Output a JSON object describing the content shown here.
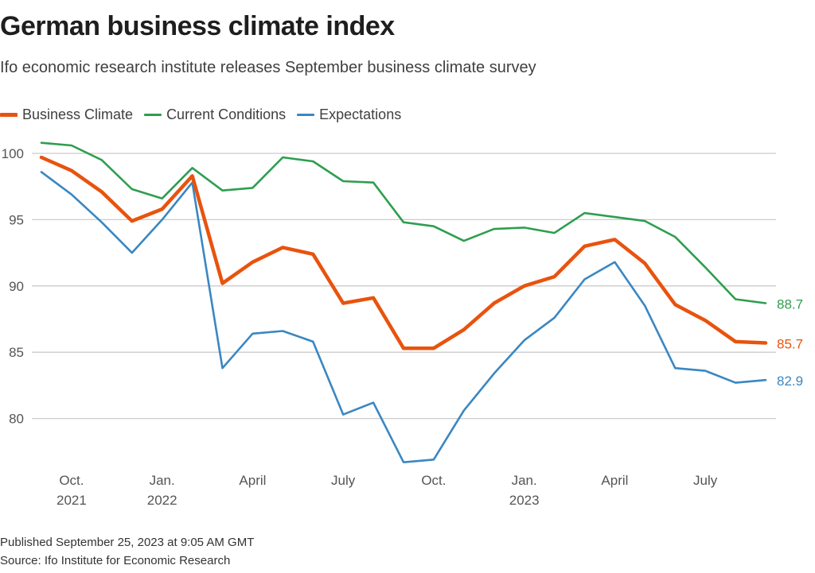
{
  "header": {
    "title": "German business climate index",
    "subtitle": "Ifo economic research institute releases September business climate survey"
  },
  "footer": {
    "published": "Published September 25, 2023 at 9:05 AM GMT",
    "source": "Source: Ifo Institute for Economic Research"
  },
  "chart_data": {
    "type": "line",
    "title": "German business climate index",
    "subtitle": "Ifo economic research institute releases September business climate survey",
    "xlabel": "",
    "ylabel": "",
    "x": [
      "2021-09",
      "2021-10",
      "2021-11",
      "2021-12",
      "2022-01",
      "2022-02",
      "2022-03",
      "2022-04",
      "2022-05",
      "2022-06",
      "2022-07",
      "2022-08",
      "2022-09",
      "2022-10",
      "2022-11",
      "2022-12",
      "2023-01",
      "2023-02",
      "2023-03",
      "2023-04",
      "2023-05",
      "2023-06",
      "2023-07",
      "2023-08",
      "2023-09"
    ],
    "x_ticks": [
      {
        "index": 1,
        "line1": "Oct.",
        "line2": "2021"
      },
      {
        "index": 4,
        "line1": "Jan.",
        "line2": "2022"
      },
      {
        "index": 7,
        "line1": "April",
        "line2": ""
      },
      {
        "index": 10,
        "line1": "July",
        "line2": ""
      },
      {
        "index": 13,
        "line1": "Oct.",
        "line2": ""
      },
      {
        "index": 16,
        "line1": "Jan.",
        "line2": "2023"
      },
      {
        "index": 19,
        "line1": "April",
        "line2": ""
      },
      {
        "index": 22,
        "line1": "July",
        "line2": ""
      }
    ],
    "y_ticks": [
      80,
      85,
      90,
      95,
      100
    ],
    "ylim": [
      75.5,
      101.5
    ],
    "grid": true,
    "legend_position": "top-left",
    "series": [
      {
        "name": "Business Climate",
        "color": "#e8530e",
        "end_label": "85.7",
        "values": [
          99.7,
          98.7,
          97.1,
          94.9,
          95.8,
          98.3,
          90.2,
          91.8,
          92.9,
          92.4,
          88.7,
          89.1,
          85.3,
          85.3,
          86.7,
          88.7,
          90.0,
          90.7,
          93.0,
          93.5,
          91.7,
          88.6,
          87.4,
          85.8,
          85.7
        ]
      },
      {
        "name": "Current Conditions",
        "color": "#2e9e4f",
        "end_label": "88.7",
        "values": [
          100.8,
          100.6,
          99.5,
          97.3,
          96.6,
          98.9,
          97.2,
          97.4,
          99.7,
          99.4,
          97.9,
          97.8,
          94.8,
          94.5,
          93.4,
          94.3,
          94.4,
          94.0,
          95.5,
          95.2,
          94.9,
          93.7,
          91.4,
          89.0,
          88.7
        ]
      },
      {
        "name": "Expectations",
        "color": "#3a87c2",
        "end_label": "82.9",
        "values": [
          98.6,
          96.9,
          94.8,
          92.5,
          95.0,
          97.8,
          83.8,
          86.4,
          86.6,
          85.8,
          80.3,
          81.2,
          76.7,
          76.9,
          80.6,
          83.4,
          85.9,
          87.6,
          90.5,
          91.8,
          88.5,
          83.8,
          83.6,
          82.7,
          82.9
        ]
      }
    ]
  }
}
